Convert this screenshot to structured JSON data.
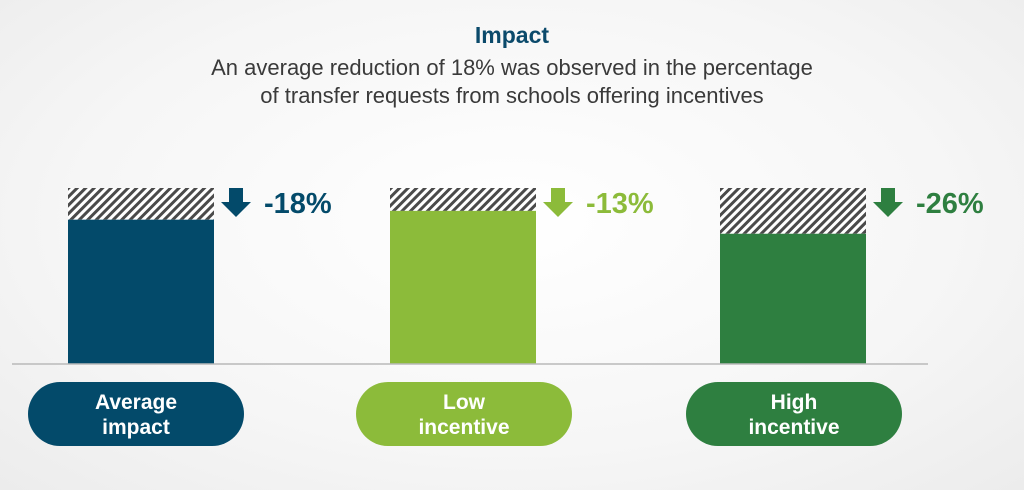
{
  "chart_data": {
    "type": "bar",
    "title": "Impact",
    "subtitle_lines": [
      "An average reduction of 18% was observed in the percentage",
      "of transfer requests from schools offering incentives"
    ],
    "categories": [
      "Average impact",
      "Low incentive",
      "High incentive"
    ],
    "category_label_lines": [
      [
        "Average",
        "impact"
      ],
      [
        "Low",
        "incentive"
      ],
      [
        "High",
        "incentive"
      ]
    ],
    "values": [
      82,
      87,
      74
    ],
    "baseline": 100,
    "change_labels": [
      "-18%",
      "-13%",
      "-26%"
    ],
    "ylim": [
      0,
      100
    ],
    "xlabel": "",
    "ylabel": "",
    "grid": false,
    "colors": [
      "#034a6a",
      "#8cbb3a",
      "#2e7f40"
    ]
  }
}
